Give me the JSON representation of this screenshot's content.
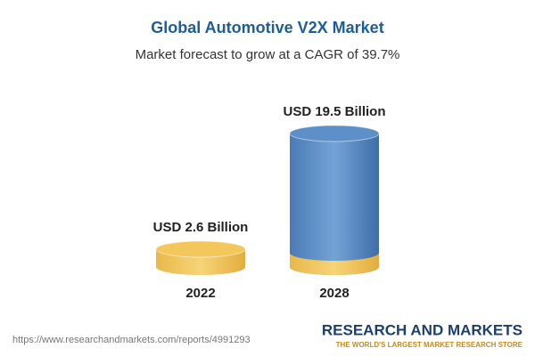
{
  "chart_data": {
    "type": "bar",
    "title": "Global Automotive V2X Market",
    "subtitle": "Market forecast to grow at a CAGR of 39.7%",
    "categories": [
      "2022",
      "2028"
    ],
    "values": [
      2.6,
      19.5
    ],
    "value_labels": [
      "USD 2.6 Billion",
      "USD 19.5 Billion"
    ],
    "colors": [
      "#f3c75c",
      "#5d8fc9"
    ],
    "source": "https://www.researchandmarkets.com/reports/4991293",
    "brand": "RESEARCH AND MARKETS",
    "tagline": "THE WORLD'S LARGEST MARKET RESEARCH STORE"
  }
}
